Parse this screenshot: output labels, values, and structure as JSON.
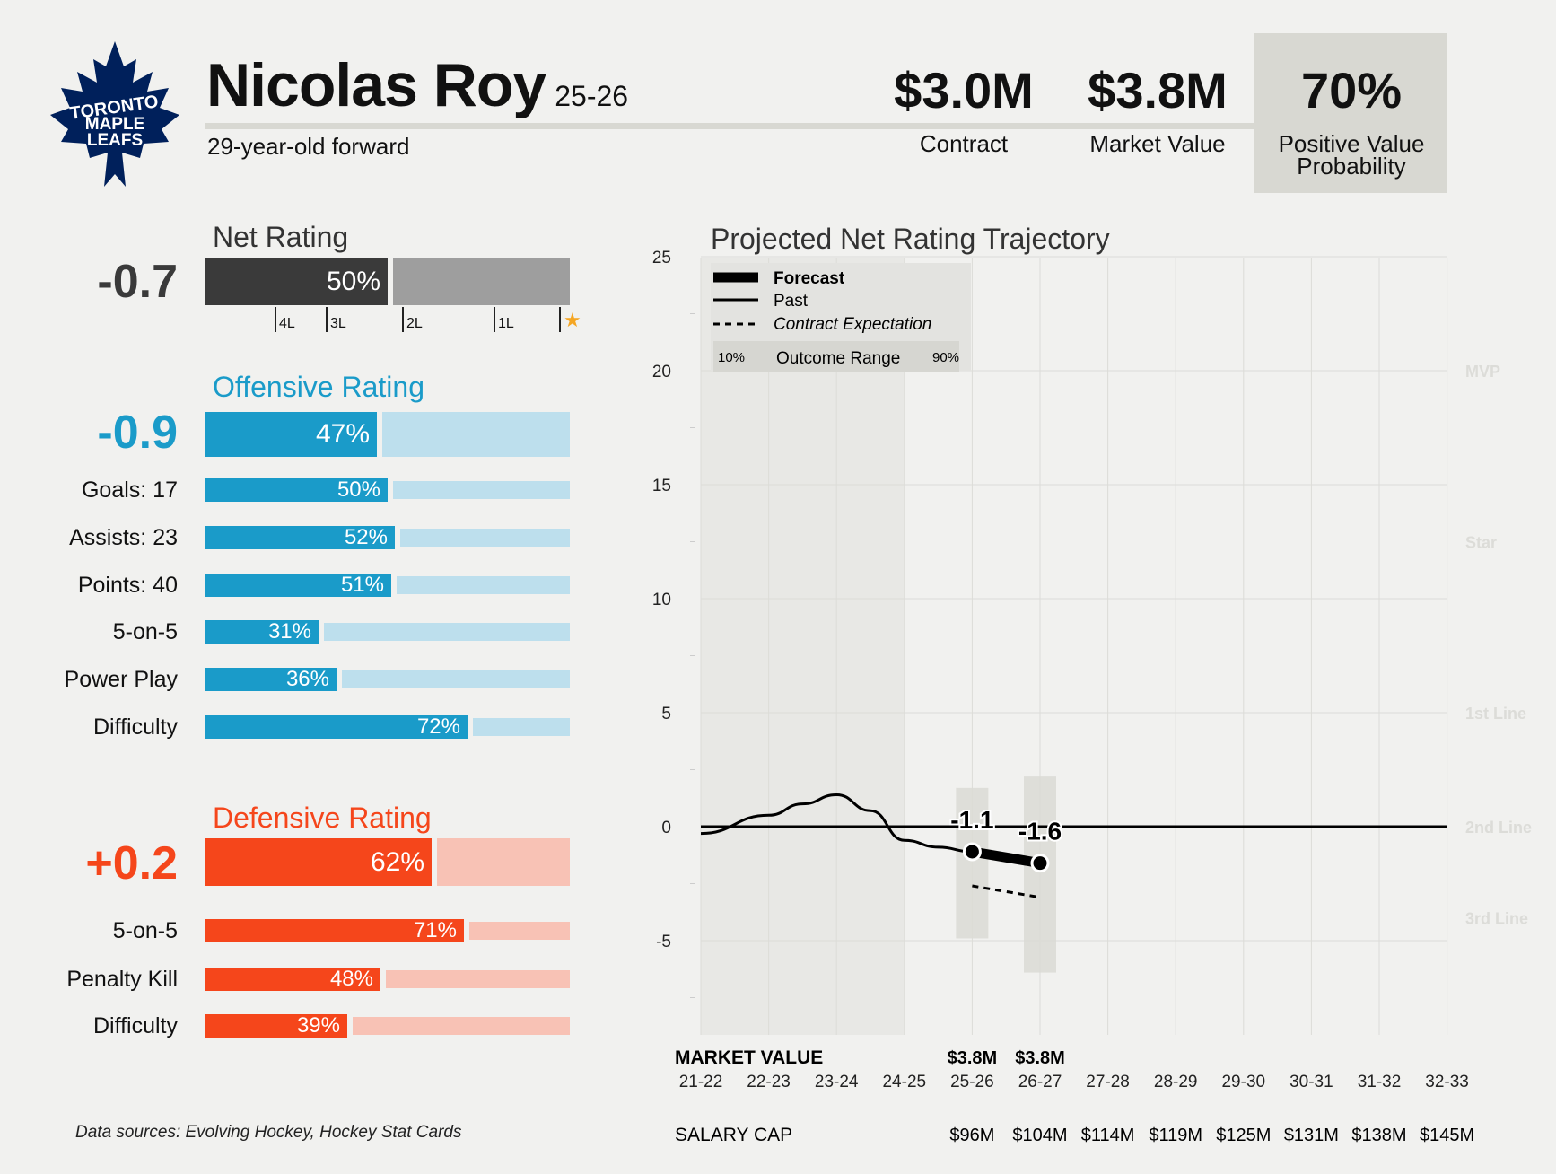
{
  "team_logo": {
    "icon": "maple-leaf-icon",
    "lines": [
      "TORONTO",
      "MAPLE",
      "LEAFS"
    ],
    "color": "#00205b"
  },
  "player": {
    "name": "Nicolas Roy",
    "season": "25-26",
    "description": "29-year-old forward"
  },
  "metrics": [
    {
      "value": "$3.0M",
      "label": "Contract"
    },
    {
      "value": "$3.8M",
      "label": "Market Value"
    },
    {
      "value": "70%",
      "label": "Positive Value Probability"
    }
  ],
  "net_rating": {
    "title": "Net Rating",
    "value": "-0.7",
    "pct": 50,
    "pct_label": "50%",
    "color": "#3a3a3a",
    "track_color": "#9e9e9e",
    "ticks": [
      {
        "label": "4L",
        "pct": 19
      },
      {
        "label": "3L",
        "pct": 33
      },
      {
        "label": "2L",
        "pct": 54
      },
      {
        "label": "1L",
        "pct": 79
      },
      {
        "label": "star-icon",
        "pct": 97
      }
    ]
  },
  "offensive_rating": {
    "title": "Offensive Rating",
    "value": "-0.9",
    "pct": 47,
    "pct_label": "47%",
    "color": "#1a9bc9",
    "track_color": "#bddfed",
    "rows": [
      {
        "label": "Goals: 17",
        "pct": 50,
        "pct_label": "50%"
      },
      {
        "label": "Assists: 23",
        "pct": 52,
        "pct_label": "52%"
      },
      {
        "label": "Points: 40",
        "pct": 51,
        "pct_label": "51%"
      },
      {
        "label": "5-on-5",
        "pct": 31,
        "pct_label": "31%"
      },
      {
        "label": "Power Play",
        "pct": 36,
        "pct_label": "36%"
      },
      {
        "label": "Difficulty",
        "pct": 72,
        "pct_label": "72%"
      }
    ]
  },
  "defensive_rating": {
    "title": "Defensive Rating",
    "value": "+0.2",
    "pct": 62,
    "pct_label": "62%",
    "color": "#f5461b",
    "track_color": "#f8c2b5",
    "rows": [
      {
        "label": "5-on-5",
        "pct": 71,
        "pct_label": "71%"
      },
      {
        "label": "Penalty Kill",
        "pct": 48,
        "pct_label": "48%"
      },
      {
        "label": "Difficulty",
        "pct": 39,
        "pct_label": "39%"
      }
    ]
  },
  "chart_data": {
    "type": "line",
    "title": "Projected Net Rating Trajectory",
    "x": [
      "21-22",
      "22-23",
      "23-24",
      "24-25",
      "25-26",
      "26-27",
      "27-28",
      "28-29",
      "29-30",
      "30-31",
      "31-32",
      "32-33"
    ],
    "ylim": [
      -9,
      25
    ],
    "yticks": [
      25,
      20,
      15,
      10,
      5,
      0,
      -5
    ],
    "grid": true,
    "legend": {
      "placement": "top-left",
      "entries": [
        "Forecast",
        "Past",
        "Contract Expectation"
      ],
      "range": {
        "low": "10%",
        "label": "Outcome Range",
        "high": "90%"
      }
    },
    "tiers": [
      {
        "label": "MVP",
        "y": 20
      },
      {
        "label": "Star",
        "y": 12.5
      },
      {
        "label": "1st Line",
        "y": 5
      },
      {
        "label": "2nd Line",
        "y": 0
      },
      {
        "label": "3rd Line",
        "y": -4
      }
    ],
    "series": [
      {
        "name": "Past",
        "points": [
          [
            0,
            -0.3
          ],
          [
            1,
            0.5
          ],
          [
            1.5,
            1.0
          ],
          [
            2,
            1.4
          ],
          [
            2.5,
            0.7
          ],
          [
            3,
            -0.6
          ],
          [
            3.5,
            -0.9
          ],
          [
            4,
            -1.1
          ]
        ]
      },
      {
        "name": "Forecast",
        "points": [
          [
            4,
            -1.1
          ],
          [
            5,
            -1.6
          ]
        ],
        "labels": [
          "-1.1",
          "-1.6"
        ]
      },
      {
        "name": "Contract Expectation",
        "points": [
          [
            4,
            -2.6
          ],
          [
            5,
            -3.1
          ]
        ]
      }
    ],
    "outcome_ranges": [
      {
        "x": 4,
        "low": -4.9,
        "high": 1.7
      },
      {
        "x": 5,
        "low": -6.4,
        "high": 2.2
      }
    ],
    "market_value": {
      "label": "MARKET VALUE",
      "values": [
        "",
        "",
        "",
        "",
        "$3.8M",
        "$3.8M",
        "",
        "",
        "",
        "",
        "",
        ""
      ]
    },
    "salary_cap": {
      "label": "SALARY CAP",
      "values": [
        "",
        "",
        "",
        "",
        "$96M",
        "$104M",
        "$114M",
        "$119M",
        "$125M",
        "$131M",
        "$138M",
        "$145M"
      ]
    }
  },
  "footer": {
    "sources": "Data sources: Evolving Hockey, Hockey Stat Cards"
  }
}
